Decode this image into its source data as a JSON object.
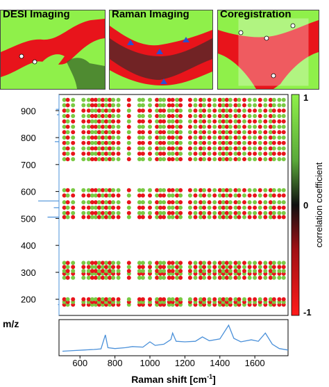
{
  "panels": [
    {
      "title": "DESI Imaging"
    },
    {
      "title": "Raman Imaging"
    },
    {
      "title": "Coregistration"
    }
  ],
  "colors": {
    "green": "#7ac943",
    "red": "#e8141b",
    "spectrum": "#4a90d9",
    "bright_green": "#8ff04a"
  },
  "chart_data": {
    "type": "heatmap",
    "xlabel": "Raman shift [cm",
    "xlabel_sup": "-1",
    "xlabel_suffix": "]",
    "ylabel": "m/z",
    "colorbar_label": "correlation coefficient",
    "xlim": [
      480,
      1790
    ],
    "ylim": [
      140,
      960
    ],
    "x_ticks": [
      600,
      800,
      1000,
      1200,
      1400,
      1600
    ],
    "y_ticks": [
      200,
      300,
      400,
      500,
      600,
      700,
      800,
      900
    ],
    "colorbar_ticks": [
      {
        "value": 1,
        "label": "1"
      },
      {
        "value": 0,
        "label": "0"
      },
      {
        "value": -1,
        "label": "-1"
      }
    ],
    "raman_columns": [
      {
        "x": 510,
        "r": 0.2
      },
      {
        "x": 530,
        "r": -0.4
      },
      {
        "x": 560,
        "r": 0.6
      },
      {
        "x": 620,
        "r": 0.3
      },
      {
        "x": 650,
        "r": 0.7
      },
      {
        "x": 670,
        "r": -0.5
      },
      {
        "x": 690,
        "r": -0.6
      },
      {
        "x": 710,
        "r": 0.5
      },
      {
        "x": 730,
        "r": -0.7
      },
      {
        "x": 750,
        "r": 0.4
      },
      {
        "x": 770,
        "r": -0.5
      },
      {
        "x": 790,
        "r": 0.6
      },
      {
        "x": 820,
        "r": 0.3
      },
      {
        "x": 880,
        "r": -0.3
      },
      {
        "x": 940,
        "r": 0.4
      },
      {
        "x": 960,
        "r": 0.5
      },
      {
        "x": 1000,
        "r": 0.6
      },
      {
        "x": 1040,
        "r": -0.4
      },
      {
        "x": 1060,
        "r": 0.5
      },
      {
        "x": 1080,
        "r": 0.6
      },
      {
        "x": 1110,
        "r": -0.3
      },
      {
        "x": 1130,
        "r": -0.6
      },
      {
        "x": 1155,
        "r": 0.4
      },
      {
        "x": 1175,
        "r": -0.5
      },
      {
        "x": 1230,
        "r": -0.5
      },
      {
        "x": 1260,
        "r": 0.7
      },
      {
        "x": 1290,
        "r": -0.6
      },
      {
        "x": 1310,
        "r": 0.4
      },
      {
        "x": 1340,
        "r": -0.3
      },
      {
        "x": 1370,
        "r": 0.5
      },
      {
        "x": 1400,
        "r": -0.4
      },
      {
        "x": 1420,
        "r": 0.6
      },
      {
        "x": 1440,
        "r": -0.7
      },
      {
        "x": 1460,
        "r": 0.5
      },
      {
        "x": 1490,
        "r": -0.5
      },
      {
        "x": 1510,
        "r": 0.6
      },
      {
        "x": 1540,
        "r": -0.4
      },
      {
        "x": 1570,
        "r": 0.7
      },
      {
        "x": 1600,
        "r": 0.4
      },
      {
        "x": 1630,
        "r": -0.6
      },
      {
        "x": 1660,
        "r": 0.5
      },
      {
        "x": 1690,
        "r": -0.3
      },
      {
        "x": 1710,
        "r": 0.5
      },
      {
        "x": 1740,
        "r": 0.4
      },
      {
        "x": 1765,
        "r": 0.3
      }
    ],
    "mz_bands": [
      {
        "mz": 180,
        "r": -0.3
      },
      {
        "mz": 190,
        "r": 0.6
      },
      {
        "mz": 200,
        "r": -0.5
      },
      {
        "mz": 280,
        "r": 0.5
      },
      {
        "mz": 295,
        "r": -0.4
      },
      {
        "mz": 305,
        "r": 0.6
      },
      {
        "mz": 320,
        "r": -0.5
      },
      {
        "mz": 335,
        "r": 0.4
      },
      {
        "mz": 505,
        "r": -0.5
      },
      {
        "mz": 520,
        "r": 0.4
      },
      {
        "mz": 540,
        "r": -0.3
      },
      {
        "mz": 560,
        "r": 0.5
      },
      {
        "mz": 585,
        "r": -0.4
      },
      {
        "mz": 605,
        "r": 0.6
      },
      {
        "mz": 720,
        "r": 0.4
      },
      {
        "mz": 740,
        "r": -0.5
      },
      {
        "mz": 760,
        "r": 0.6
      },
      {
        "mz": 780,
        "r": -0.6
      },
      {
        "mz": 800,
        "r": 0.5
      },
      {
        "mz": 820,
        "r": -0.4
      },
      {
        "mz": 840,
        "r": 0.5
      },
      {
        "mz": 860,
        "r": -0.7
      },
      {
        "mz": 880,
        "r": 0.4
      },
      {
        "mz": 900,
        "r": -0.5
      },
      {
        "mz": 920,
        "r": 0.6
      },
      {
        "mz": 940,
        "r": 0.3
      }
    ],
    "ms_spectrum": [
      {
        "mz": 180,
        "intensity": 0.05
      },
      {
        "mz": 300,
        "intensity": 0.05
      },
      {
        "mz": 505,
        "intensity": 0.55
      },
      {
        "mz": 540,
        "intensity": 0.25
      },
      {
        "mz": 565,
        "intensity": 1.0
      },
      {
        "mz": 785,
        "intensity": 0.2
      },
      {
        "mz": 885,
        "intensity": 0.1
      },
      {
        "mz": 905,
        "intensity": 0.15
      }
    ],
    "raman_spectrum": [
      [
        500,
        0.06
      ],
      [
        560,
        0.08
      ],
      [
        620,
        0.1
      ],
      [
        680,
        0.12
      ],
      [
        720,
        0.14
      ],
      [
        745,
        0.62
      ],
      [
        760,
        0.18
      ],
      [
        800,
        0.15
      ],
      [
        860,
        0.18
      ],
      [
        900,
        0.22
      ],
      [
        960,
        0.2
      ],
      [
        1000,
        0.38
      ],
      [
        1030,
        0.26
      ],
      [
        1080,
        0.3
      ],
      [
        1120,
        0.46
      ],
      [
        1130,
        0.68
      ],
      [
        1150,
        0.4
      ],
      [
        1200,
        0.38
      ],
      [
        1260,
        0.4
      ],
      [
        1300,
        0.55
      ],
      [
        1340,
        0.42
      ],
      [
        1400,
        0.48
      ],
      [
        1450,
        0.95
      ],
      [
        1480,
        0.5
      ],
      [
        1520,
        0.38
      ],
      [
        1580,
        0.45
      ],
      [
        1620,
        0.4
      ],
      [
        1660,
        0.68
      ],
      [
        1700,
        0.3
      ],
      [
        1740,
        0.15
      ],
      [
        1790,
        0.1
      ]
    ]
  }
}
